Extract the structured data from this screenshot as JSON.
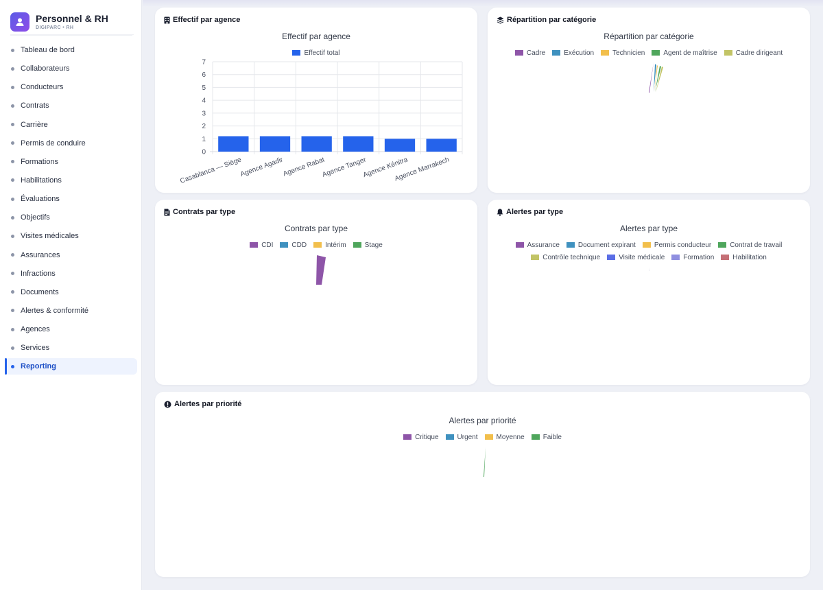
{
  "app": {
    "title": "Personnel & RH",
    "subtitle": "DIGIPARC • RH"
  },
  "sidebar": {
    "items": [
      {
        "label": "Tableau de bord",
        "active": false
      },
      {
        "label": "Collaborateurs",
        "active": false
      },
      {
        "label": "Conducteurs",
        "active": false
      },
      {
        "label": "Contrats",
        "active": false
      },
      {
        "label": "Carrière",
        "active": false
      },
      {
        "label": "Permis de conduire",
        "active": false
      },
      {
        "label": "Formations",
        "active": false
      },
      {
        "label": "Habilitations",
        "active": false
      },
      {
        "label": "Évaluations",
        "active": false
      },
      {
        "label": "Objectifs",
        "active": false
      },
      {
        "label": "Visites médicales",
        "active": false
      },
      {
        "label": "Assurances",
        "active": false
      },
      {
        "label": "Infractions",
        "active": false
      },
      {
        "label": "Documents",
        "active": false
      },
      {
        "label": "Alertes & conformité",
        "active": false
      },
      {
        "label": "Agences",
        "active": false
      },
      {
        "label": "Services",
        "active": false
      },
      {
        "label": "Reporting",
        "active": true
      }
    ]
  },
  "cards": {
    "effectif": {
      "heading": "Effectif par agence",
      "icon": "building-icon"
    },
    "categorie": {
      "heading": "Répartition par catégorie",
      "icon": "layers-icon"
    },
    "contrats": {
      "heading": "Contrats par type",
      "icon": "file-contract-icon"
    },
    "alertes_type": {
      "heading": "Alertes par type",
      "icon": "bell-icon"
    },
    "alertes_priorite": {
      "heading": "Alertes par priorité",
      "icon": "exclamation-circle-icon"
    }
  },
  "chart_data": [
    {
      "id": "effectif",
      "type": "bar",
      "title": "Effectif par agence",
      "categories": [
        "Casablanca — Siège",
        "Agence Agadir",
        "Agence Rabat",
        "Agence Tanger",
        "Agence Kénitra",
        "Agence Marrakech"
      ],
      "series": [
        {
          "name": "Effectif total",
          "color": "#2563eb",
          "values": [
            1.2,
            1.2,
            1.2,
            1.2,
            1.0,
            1.0
          ]
        }
      ],
      "ylim": [
        0,
        7
      ],
      "yticks": [
        "0",
        "1",
        "2",
        "3",
        "4",
        "5",
        "6",
        "7"
      ],
      "grid": true,
      "legend": "top"
    },
    {
      "id": "categorie",
      "type": "pie",
      "title": "Répartition par catégorie",
      "labels": [
        "Cadre",
        "Exécution",
        "Technicien",
        "Agent de maîtrise",
        "Cadre dirigeant"
      ],
      "colors": [
        "#8e55a8",
        "#3f91bf",
        "#f2bf4c",
        "#4fa65c",
        "#c2c466"
      ],
      "legend": "top"
    },
    {
      "id": "contrats",
      "type": "pie",
      "title": "Contrats par type",
      "labels": [
        "CDI",
        "CDD",
        "Intérim",
        "Stage"
      ],
      "colors": [
        "#8e55a8",
        "#3f91bf",
        "#f2bf4c",
        "#4fa65c"
      ],
      "legend": "top"
    },
    {
      "id": "alertes_type",
      "type": "pie",
      "title": "Alertes par type",
      "labels": [
        "Assurance",
        "Document expirant",
        "Permis conducteur",
        "Contrat de travail",
        "Contrôle technique",
        "Visite médicale",
        "Formation",
        "Habilitation"
      ],
      "colors": [
        "#8e55a8",
        "#3f91bf",
        "#f2bf4c",
        "#4fa65c",
        "#c2c466",
        "#5b6ee6",
        "#8f8fe0",
        "#c57076"
      ],
      "legend": "top"
    },
    {
      "id": "alertes_priorite",
      "type": "pie",
      "title": "Alertes par priorité",
      "labels": [
        "Critique",
        "Urgent",
        "Moyenne",
        "Faible"
      ],
      "colors": [
        "#8e55a8",
        "#3f91bf",
        "#f2bf4c",
        "#4fa65c"
      ],
      "legend": "top"
    }
  ]
}
